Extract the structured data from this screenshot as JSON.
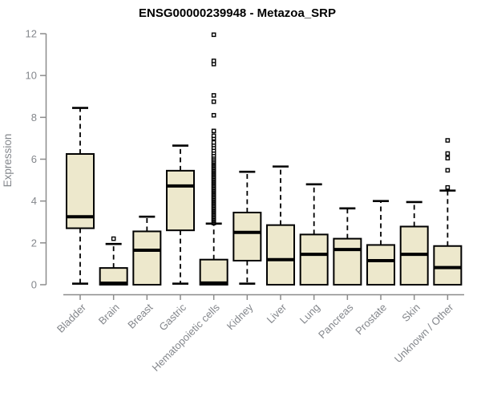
{
  "chart_data": {
    "type": "boxplot",
    "title": "ENSG00000239948 - Metazoa_SRP",
    "ylabel": "Expression",
    "xlabel": "",
    "ylim": [
      0,
      12
    ],
    "yticks": [
      0,
      2,
      4,
      6,
      8,
      10,
      12
    ],
    "grid": false,
    "legend_position": "none",
    "colors": {
      "box_fill": "#EDE8CC",
      "box_stroke": "#000000",
      "median": "#000000",
      "whisker": "#000000",
      "outlier": "#000000",
      "axis": "#8C8C8C",
      "text": "#84878C",
      "title": "#000000",
      "background": "#FFFFFF"
    },
    "categories": [
      "Bladder",
      "Brain",
      "Breast",
      "Gastric",
      "Hematopoietic cells",
      "Kidney",
      "Liver",
      "Lung",
      "Pancreas",
      "Prostate",
      "Skin",
      "Unknown / Other"
    ],
    "series": [
      {
        "name": "Bladder",
        "min": 0.05,
        "q1": 2.7,
        "median": 3.25,
        "q3": 6.25,
        "max": 8.45,
        "outliers": []
      },
      {
        "name": "Brain",
        "min": 0,
        "q1": 0,
        "median": 0.07,
        "q3": 0.8,
        "max": 1.95,
        "outliers": [
          2.2
        ]
      },
      {
        "name": "Breast",
        "min": 0,
        "q1": 0,
        "median": 1.65,
        "q3": 2.55,
        "max": 3.25,
        "outliers": []
      },
      {
        "name": "Gastric",
        "min": 0.05,
        "q1": 2.6,
        "median": 4.72,
        "q3": 5.45,
        "max": 6.65,
        "outliers": []
      },
      {
        "name": "Hematopoietic cells",
        "min": 0,
        "q1": 0,
        "median": 0.08,
        "q3": 1.2,
        "max": 2.92,
        "outliers": [
          2.95,
          3.0,
          3.06,
          3.12,
          3.18,
          3.24,
          3.3,
          3.36,
          3.42,
          3.48,
          3.54,
          3.6,
          3.66,
          3.72,
          3.78,
          3.84,
          3.9,
          3.96,
          4.02,
          4.08,
          4.14,
          4.2,
          4.26,
          4.32,
          4.38,
          4.44,
          4.5,
          4.56,
          4.62,
          4.68,
          4.74,
          4.8,
          4.86,
          4.92,
          4.98,
          5.04,
          5.1,
          5.16,
          5.22,
          5.28,
          5.34,
          5.4,
          5.46,
          5.52,
          5.58,
          5.64,
          5.7,
          5.76,
          5.82,
          5.88,
          5.95,
          6.02,
          6.1,
          6.18,
          6.3,
          6.42,
          6.55,
          6.68,
          6.8,
          7.0,
          7.12,
          7.35,
          8.1,
          8.75,
          9.05,
          10.55,
          10.7,
          11.95
        ]
      },
      {
        "name": "Kidney",
        "min": 0.05,
        "q1": 1.15,
        "median": 2.5,
        "q3": 3.45,
        "max": 5.4,
        "outliers": []
      },
      {
        "name": "Liver",
        "min": 0,
        "q1": 0,
        "median": 1.2,
        "q3": 2.85,
        "max": 5.65,
        "outliers": []
      },
      {
        "name": "Lung",
        "min": 0,
        "q1": 0,
        "median": 1.45,
        "q3": 2.4,
        "max": 4.8,
        "outliers": []
      },
      {
        "name": "Pancreas",
        "min": 0,
        "q1": 0,
        "median": 1.68,
        "q3": 2.2,
        "max": 3.65,
        "outliers": []
      },
      {
        "name": "Prostate",
        "min": 0,
        "q1": 0,
        "median": 1.15,
        "q3": 1.9,
        "max": 4.0,
        "outliers": []
      },
      {
        "name": "Skin",
        "min": 0,
        "q1": 0,
        "median": 1.45,
        "q3": 2.78,
        "max": 3.95,
        "outliers": []
      },
      {
        "name": "Unknown / Other",
        "min": 0,
        "q1": 0,
        "median": 0.82,
        "q3": 1.85,
        "max": 4.5,
        "outliers": [
          4.65,
          5.47,
          6.05,
          6.27,
          6.9
        ]
      }
    ]
  }
}
